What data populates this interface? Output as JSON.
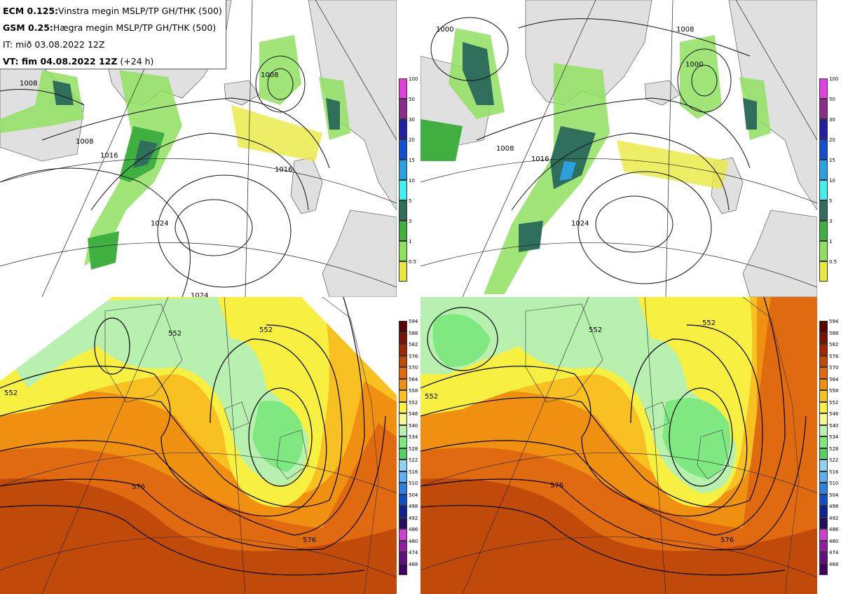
{
  "header": {
    "line1_bold": "ECM 0.125:",
    "line1_rest": "Vinstra megin MSLP/TP GH/THK (500)",
    "line2_bold": "GSM 0.25:",
    "line2_rest": "Hægra megin MSLP/TP GH/THK (500)",
    "line3": "IT: mið 03.08.2022 12Z",
    "line4_bold": "VT: fim 04.08.2022 12Z",
    "line4_rest": "(+24 h)"
  },
  "precip_scale": {
    "labels": [
      "100",
      "50",
      "30",
      "20",
      "15",
      "10",
      "5",
      "3",
      "1",
      "0.5"
    ],
    "colors": [
      "#e040e0",
      "#8c2c8c",
      "#2020a0",
      "#1050d0",
      "#2aa0e0",
      "#40f0f0",
      "#2e6e5a",
      "#40b040",
      "#90e060",
      "#e8e840"
    ]
  },
  "thickness_scale": {
    "labels": [
      "594",
      "588",
      "582",
      "576",
      "570",
      "564",
      "558",
      "552",
      "546",
      "540",
      "534",
      "528",
      "522",
      "516",
      "510",
      "504",
      "498",
      "492",
      "486",
      "480",
      "474",
      "468"
    ],
    "colors": [
      "#5a0000",
      "#7a1000",
      "#a02800",
      "#c04a0a",
      "#e06a10",
      "#f09010",
      "#f8c020",
      "#f8f040",
      "#f8f890",
      "#b8f0b0",
      "#80e880",
      "#58d060",
      "#90d0f0",
      "#60b0f0",
      "#3080e0",
      "#1050c0",
      "#102090",
      "#201060",
      "#d040d0",
      "#9020a0",
      "#601080",
      "#400060"
    ]
  },
  "isobar_labels": {
    "left": [
      "1008",
      "1008",
      "1016",
      "1016",
      "1024",
      "1024",
      "1008"
    ],
    "right": [
      "1008",
      "1016",
      "1024",
      "1008",
      "1000",
      "1000"
    ]
  },
  "height_labels": {
    "left": [
      "552",
      "552",
      "552",
      "576",
      "576"
    ],
    "right": [
      "552",
      "552",
      "552",
      "576",
      "576"
    ]
  }
}
